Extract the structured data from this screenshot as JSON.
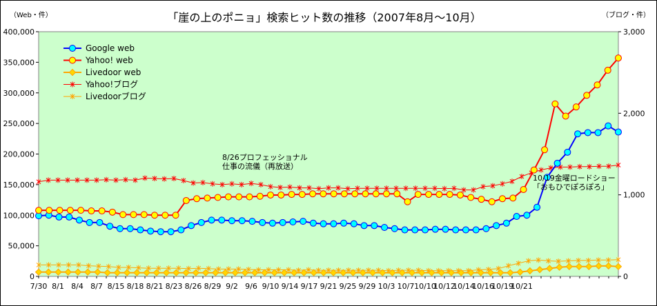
{
  "chart_data": {
    "type": "line",
    "title": "「崖の上のポニョ」検索ヒット数の推移（2007年8月〜10月）",
    "left_axis_unit": "（Web・件）",
    "right_axis_unit": "（ブログ・件）",
    "ylim_left": [
      0,
      400000
    ],
    "ylim_right": [
      0,
      3000
    ],
    "yticks_left": [
      "0",
      "50,000",
      "100,000",
      "150,000",
      "200,000",
      "250,000",
      "300,000",
      "350,000",
      "400,000"
    ],
    "yticks_right": [
      "0",
      "1,000",
      "2,000",
      "3,000"
    ],
    "grid": false,
    "legend_position": "top-left",
    "x_tick_labels": [
      "7/30",
      "8/1",
      "8/4",
      "8/7",
      "8/15",
      "8/18",
      "8/21",
      "8/23",
      "8/26",
      "8/29",
      "9/2",
      "9/6",
      "9/10",
      "9/14",
      "9/17",
      "9/21",
      "9/25",
      "9/29",
      "10/3",
      "10/7",
      "10/10",
      "10/12",
      "10/14",
      "10/16",
      "10/19",
      "10/21"
    ],
    "x_tick_label_points": [
      0,
      2,
      4,
      6,
      8,
      10,
      12,
      14,
      16,
      18,
      20,
      22,
      24,
      26,
      28,
      30,
      32,
      34,
      36,
      38,
      40,
      42,
      44,
      46,
      48,
      50
    ],
    "series": [
      {
        "name": "Google web",
        "axis": "left",
        "color": "#0000ff",
        "marker": "circle",
        "marker_fill": "#00ffff",
        "values": [
          99000,
          100000,
          97000,
          97000,
          92000,
          88000,
          88000,
          82000,
          78000,
          78000,
          76000,
          74000,
          73000,
          73000,
          76000,
          83000,
          88000,
          92000,
          92000,
          91000,
          91000,
          90000,
          88000,
          87000,
          88000,
          89000,
          90000,
          87000,
          86000,
          86000,
          87000,
          86000,
          83000,
          83000,
          80000,
          78000,
          76000,
          76000,
          76000,
          77000,
          77000,
          76000,
          76000,
          76000,
          78000,
          83000,
          87000,
          98000,
          100000,
          113000,
          162000,
          185000,
          203000,
          233000,
          235000,
          235000,
          246000,
          236000
        ]
      },
      {
        "name": "Yahoo! web",
        "axis": "left",
        "color": "#ff0000",
        "marker": "circle",
        "marker_fill": "#ffff00",
        "values": [
          108000,
          108000,
          108000,
          108000,
          108000,
          107000,
          107000,
          105000,
          101000,
          101000,
          101000,
          100000,
          100000,
          100000,
          124000,
          127000,
          128000,
          129000,
          130000,
          130000,
          130000,
          131000,
          133000,
          133000,
          134000,
          134000,
          135000,
          135000,
          135000,
          135000,
          135000,
          135000,
          135000,
          135000,
          135000,
          122000,
          134000,
          134000,
          134000,
          134000,
          133000,
          129000,
          126000,
          122000,
          127000,
          128000,
          142000,
          174000,
          207000,
          282000,
          262000,
          277000,
          296000,
          313000,
          337000,
          357000
        ]
      },
      {
        "name": "Livedoor web",
        "axis": "left",
        "color": "#ffa500",
        "marker": "diamond",
        "marker_fill": "#ffd700",
        "values": [
          7000,
          7000,
          7000,
          7000,
          7000,
          7000,
          7000,
          6000,
          6000,
          6000,
          6000,
          6000,
          6000,
          6000,
          6000,
          6000,
          6000,
          6000,
          6000,
          6000,
          6000,
          6000,
          6000,
          6000,
          6000,
          6000,
          6000,
          6000,
          6000,
          6000,
          6000,
          6000,
          6000,
          6000,
          6000,
          6000,
          6000,
          6000,
          6000,
          6000,
          6000,
          6000,
          6000,
          6000,
          6000,
          6000,
          6000,
          6000,
          6000,
          7000,
          9000,
          11000,
          13000,
          15000,
          16000,
          16000,
          16000,
          17000,
          17000,
          16000
        ]
      },
      {
        "name": "Yahoo!ブログ",
        "axis": "right",
        "color": "#ff0000",
        "marker": "star",
        "values": [
          1160,
          1180,
          1180,
          1180,
          1180,
          1180,
          1180,
          1185,
          1180,
          1185,
          1180,
          1205,
          1200,
          1195,
          1200,
          1175,
          1145,
          1150,
          1135,
          1125,
          1135,
          1125,
          1140,
          1125,
          1100,
          1090,
          1095,
          1085,
          1085,
          1075,
          1085,
          1085,
          1075,
          1080,
          1080,
          1080,
          1080,
          1080,
          1080,
          1080,
          1080,
          1080,
          1075,
          1080,
          1060,
          1060,
          1100,
          1110,
          1135,
          1165,
          1225,
          1270,
          1305,
          1330,
          1340,
          1340,
          1345,
          1345,
          1350,
          1350,
          1365
        ]
      },
      {
        "name": "Livedoorブログ",
        "axis": "right",
        "color": "#ffa500",
        "marker": "star",
        "values": [
          140,
          140,
          140,
          140,
          140,
          130,
          125,
          120,
          110,
          110,
          105,
          100,
          100,
          100,
          100,
          95,
          100,
          95,
          90,
          90,
          90,
          85,
          80,
          80,
          80,
          80,
          75,
          80,
          75,
          75,
          75,
          75,
          75,
          75,
          75,
          70,
          75,
          75,
          75,
          70,
          70,
          70,
          70,
          70,
          80,
          85,
          95,
          130,
          160,
          190,
          200,
          190,
          185,
          190,
          195,
          195,
          200,
          200,
          205
        ]
      }
    ],
    "annotations": [
      {
        "lines": [
          "8/26プロフェッショナル",
          "仕事の流儀（再放送）"
        ],
        "near_point": 16
      },
      {
        "lines": [
          "10/19金曜ロードショー",
          "「おもひでぽろぽろ」"
        ],
        "near_point": 48
      }
    ]
  }
}
